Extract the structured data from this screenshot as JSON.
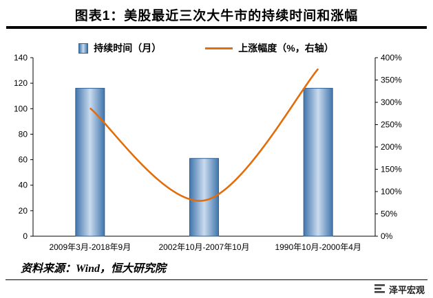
{
  "page_title": "图表1：美股最近三次大牛市的持续时间和涨幅",
  "legend": {
    "bar_label": "持续时间（月）",
    "line_label": "上涨幅度（%，右轴）"
  },
  "chart_data": {
    "type": "combo-bar-line",
    "title": "图表1：美股最近三次大牛市的持续时间和涨幅",
    "categories": [
      "2009年3月-2018年9月",
      "2002年10月-2007年10月",
      "1990年10月-2000年4月"
    ],
    "series": [
      {
        "name": "持续时间（月）",
        "type": "bar",
        "axis": "left",
        "values": [
          116,
          61,
          116
        ]
      },
      {
        "name": "上涨幅度（%，右轴）",
        "type": "line",
        "axis": "right",
        "values": [
          287,
          80,
          375
        ]
      }
    ],
    "left_axis": {
      "min": 0,
      "max": 140,
      "step": 20
    },
    "right_axis": {
      "min": 0,
      "max": 400,
      "step": 50
    },
    "left_ticks": [
      "0",
      "20",
      "40",
      "60",
      "80",
      "100",
      "120",
      "140"
    ],
    "right_ticks": [
      "0%",
      "50%",
      "100%",
      "150%",
      "200%",
      "250%",
      "300%",
      "350%",
      "400%"
    ],
    "legend_position": "top",
    "grid": false,
    "colors": {
      "bar_edge": "#4175ac",
      "bar_center": "#c9dbee",
      "bar_border": "#2e5f96",
      "line": "#e36c09",
      "left_axis_text": "#17375e",
      "axis_line": "#000000"
    }
  },
  "footer": {
    "source": "资料来源：Wind，恒大研究院",
    "brand": "泽平宏观"
  }
}
